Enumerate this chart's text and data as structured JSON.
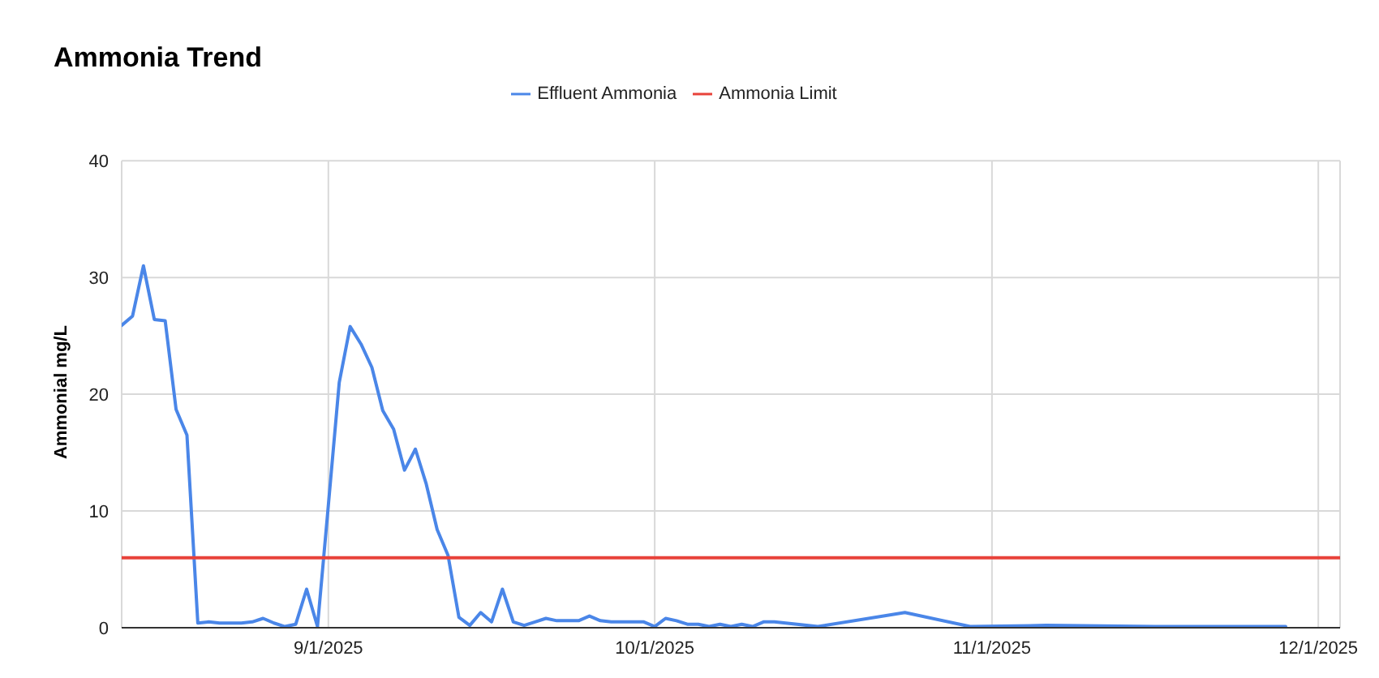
{
  "chart_data": {
    "type": "line",
    "title": "Ammonia Trend",
    "ylabel": "Ammonial mg/L",
    "x": [
      "2025-08-13",
      "2025-08-14",
      "2025-08-15",
      "2025-08-16",
      "2025-08-17",
      "2025-08-18",
      "2025-08-19",
      "2025-08-20",
      "2025-08-21",
      "2025-08-22",
      "2025-08-23",
      "2025-08-24",
      "2025-08-25",
      "2025-08-26",
      "2025-08-27",
      "2025-08-28",
      "2025-08-29",
      "2025-08-30",
      "2025-08-31",
      "2025-09-01",
      "2025-09-02",
      "2025-09-03",
      "2025-09-04",
      "2025-09-05",
      "2025-09-06",
      "2025-09-07",
      "2025-09-08",
      "2025-09-09",
      "2025-09-10",
      "2025-09-11",
      "2025-09-12",
      "2025-09-13",
      "2025-09-14",
      "2025-09-15",
      "2025-09-16",
      "2025-09-17",
      "2025-09-18",
      "2025-09-19",
      "2025-09-20",
      "2025-09-21",
      "2025-09-22",
      "2025-09-23",
      "2025-09-24",
      "2025-09-25",
      "2025-09-26",
      "2025-09-27",
      "2025-09-28",
      "2025-09-29",
      "2025-09-30",
      "2025-10-01",
      "2025-10-02",
      "2025-10-03",
      "2025-10-04",
      "2025-10-05",
      "2025-10-06",
      "2025-10-07",
      "2025-10-08",
      "2025-10-09",
      "2025-10-10",
      "2025-10-11",
      "2025-10-12",
      "2025-10-16",
      "2025-10-24",
      "2025-10-30",
      "2025-11-06",
      "2025-11-16",
      "2025-11-28"
    ],
    "series": [
      {
        "name": "Effluent Ammonia",
        "color": "#4a86e8",
        "values": [
          25.9,
          26.7,
          31.0,
          26.4,
          26.3,
          18.7,
          16.5,
          0.4,
          0.5,
          0.4,
          0.4,
          0.4,
          0.5,
          0.8,
          0.4,
          0.1,
          0.3,
          3.3,
          0.1,
          10.5,
          21.0,
          25.8,
          24.3,
          22.3,
          18.6,
          17.0,
          13.5,
          15.3,
          12.3,
          8.4,
          6.2,
          0.9,
          0.2,
          1.3,
          0.5,
          3.3,
          0.5,
          0.2,
          0.5,
          0.8,
          0.6,
          0.6,
          0.6,
          1.0,
          0.6,
          0.5,
          0.5,
          0.5,
          0.5,
          0.1,
          0.8,
          0.6,
          0.3,
          0.3,
          0.1,
          0.3,
          0.1,
          0.3,
          0.1,
          0.5,
          0.5,
          0.1,
          1.3,
          0.1,
          0.2,
          0.1,
          0.1
        ]
      },
      {
        "name": "Ammonia Limit",
        "color": "#e8423a",
        "x": [
          "2025-08-13",
          "2025-12-03"
        ],
        "values": [
          6,
          6
        ]
      }
    ],
    "xlim": [
      "2025-08-13",
      "2025-12-03"
    ],
    "xticks": [
      {
        "value": "2025-09-01",
        "label": "9/1/2025"
      },
      {
        "value": "2025-10-01",
        "label": "10/1/2025"
      },
      {
        "value": "2025-11-01",
        "label": "11/1/2025"
      },
      {
        "value": "2025-12-01",
        "label": "12/1/2025"
      }
    ],
    "ylim": [
      0,
      40
    ],
    "yticks": [
      0,
      10,
      20,
      30,
      40
    ],
    "grid": true,
    "legend": "top",
    "marker": "none",
    "line_style": "solid"
  }
}
